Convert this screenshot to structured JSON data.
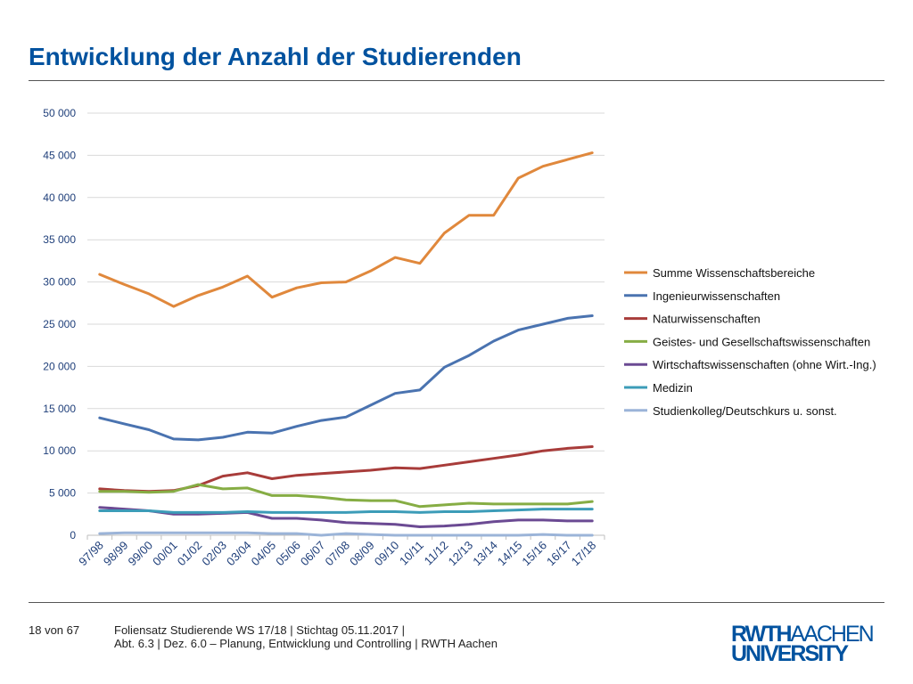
{
  "slide": {
    "title": "Entwicklung der Anzahl der Studierenden"
  },
  "footer": {
    "page": "18 von 67",
    "line1": "Foliensatz Studierende WS 17/18  |  Stichtag 05.11.2017  |",
    "line2": "Abt. 6.3 | Dez. 6.0 – Planung, Entwicklung und Controlling | RWTH Aachen"
  },
  "logo": {
    "part1": "RWTH",
    "part2": "AACHEN",
    "part3": "UNIVERSITY"
  },
  "chart_data": {
    "type": "line",
    "title": "",
    "xlabel": "",
    "ylabel": "",
    "ylim": [
      0,
      50000
    ],
    "yticks": [
      0,
      5000,
      10000,
      15000,
      20000,
      25000,
      30000,
      35000,
      40000,
      45000,
      50000
    ],
    "ytick_labels": [
      "0",
      "5 000",
      "10 000",
      "15 000",
      "20 000",
      "25 000",
      "30 000",
      "35 000",
      "40 000",
      "45 000",
      "50 000"
    ],
    "grid": true,
    "legend_position": "right",
    "categories": [
      "97/98",
      "98/99",
      "99/00",
      "00/01",
      "01/02",
      "02/03",
      "03/04",
      "04/05",
      "05/06",
      "06/07",
      "07/08",
      "08/09",
      "09/10",
      "10/11",
      "11/12",
      "12/13",
      "13/14",
      "14/15",
      "15/16",
      "16/17",
      "17/18"
    ],
    "series": [
      {
        "name": "Summe Wissenschaftsbereiche",
        "color": "#e0883c",
        "values": [
          30900,
          29700,
          28600,
          27100,
          28400,
          29400,
          30700,
          28200,
          29300,
          29900,
          30000,
          31300,
          32900,
          32200,
          35800,
          37900,
          37900,
          42300,
          43700,
          44500,
          45300
        ]
      },
      {
        "name": "Ingenieurwissenschaften",
        "color": "#4a73b0",
        "values": [
          13900,
          13200,
          12500,
          11400,
          11300,
          11600,
          12200,
          12100,
          12900,
          13600,
          14000,
          15400,
          16800,
          17200,
          19900,
          21300,
          23000,
          24300,
          25000,
          25700,
          26000
        ]
      },
      {
        "name": "Naturwissenschaften",
        "color": "#a83c3a",
        "values": [
          5500,
          5300,
          5200,
          5300,
          5900,
          7000,
          7400,
          6700,
          7100,
          7300,
          7500,
          7700,
          8000,
          7900,
          8300,
          8700,
          9100,
          9500,
          10000,
          10300,
          10500
        ]
      },
      {
        "name": "Geistes- und Gesellschaftswissenschaften",
        "color": "#86ad44",
        "values": [
          5200,
          5200,
          5100,
          5200,
          6000,
          5500,
          5600,
          4700,
          4700,
          4500,
          4200,
          4100,
          4100,
          3400,
          3600,
          3800,
          3700,
          3700,
          3700,
          3700,
          4000
        ]
      },
      {
        "name": "Wirtschaftswissenschaften (ohne Wirt.-Ing.)",
        "color": "#6b4a93",
        "values": [
          3300,
          3100,
          2900,
          2500,
          2500,
          2600,
          2700,
          2000,
          2000,
          1800,
          1500,
          1400,
          1300,
          1000,
          1100,
          1300,
          1600,
          1800,
          1800,
          1700,
          1700
        ]
      },
      {
        "name": "Medizin",
        "color": "#3c9cb8",
        "values": [
          2900,
          2900,
          2900,
          2700,
          2700,
          2700,
          2800,
          2700,
          2700,
          2700,
          2700,
          2800,
          2800,
          2700,
          2800,
          2800,
          2900,
          3000,
          3100,
          3100,
          3100
        ]
      },
      {
        "name": "Studienkolleg/Deutschkurs u. sonst.",
        "color": "#9bb4d8",
        "values": [
          200,
          300,
          300,
          300,
          300,
          300,
          300,
          200,
          200,
          0,
          200,
          100,
          0,
          0,
          0,
          0,
          0,
          0,
          100,
          0,
          0
        ]
      }
    ]
  }
}
